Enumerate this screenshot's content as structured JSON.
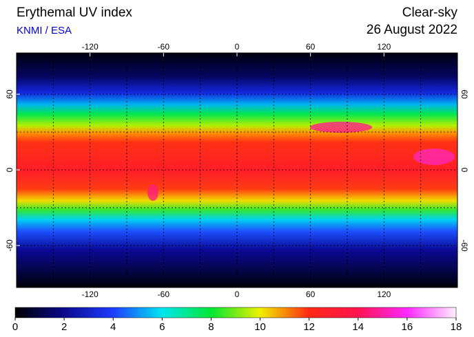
{
  "header": {
    "title": "Erythemal UV index",
    "source": "KNMI / ESA",
    "condition": "Clear-sky",
    "date": "26 August 2022"
  },
  "map": {
    "lon_range": [
      -180,
      180
    ],
    "lat_range": [
      -90,
      90
    ],
    "lon_ticks": [
      -120,
      -60,
      0,
      60,
      120
    ],
    "lat_ticks": [
      -60,
      0,
      60
    ],
    "lon_grid": [
      -150,
      -120,
      -90,
      -60,
      -30,
      0,
      30,
      60,
      90,
      120,
      150
    ],
    "lat_grid": [
      -60,
      -30,
      0,
      30,
      60
    ]
  },
  "colorbar": {
    "range": [
      0,
      18
    ],
    "ticks": [
      0,
      2,
      4,
      6,
      8,
      10,
      12,
      14,
      16,
      18
    ],
    "stops": [
      {
        "value": 0,
        "color": "#000000"
      },
      {
        "value": 2,
        "color": "#0a0a8c"
      },
      {
        "value": 4,
        "color": "#1e3cff"
      },
      {
        "value": 6,
        "color": "#00e6f0"
      },
      {
        "value": 8,
        "color": "#00e632"
      },
      {
        "value": 10,
        "color": "#f0f000"
      },
      {
        "value": 12,
        "color": "#ff2814"
      },
      {
        "value": 14,
        "color": "#ff1450"
      },
      {
        "value": 16,
        "color": "#ff28ff"
      },
      {
        "value": 18,
        "color": "#fff0ff"
      }
    ]
  }
}
